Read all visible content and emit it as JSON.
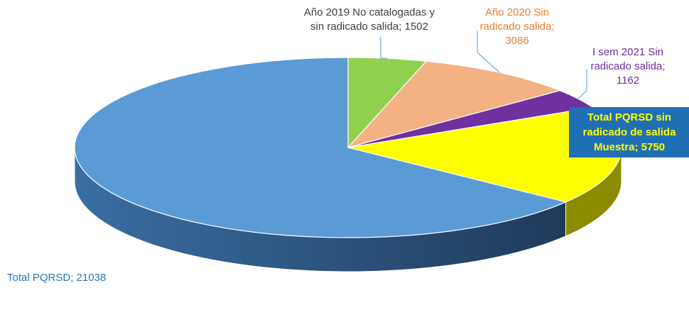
{
  "chart_data": {
    "type": "pie",
    "title": "",
    "legend": "none",
    "slices": [
      {
        "name_lines": [
          "Año 2019 No catalogadas y",
          "sin radicado salida;"
        ],
        "value_text": "1502",
        "value": 1502,
        "color": "#8fd14f",
        "label_color": "#404040"
      },
      {
        "name_lines": [
          "Año 2020 Sin",
          "radicado salida;"
        ],
        "value_text": "3086",
        "value": 3086,
        "color": "#f4b183",
        "label_color": "#ed7d31"
      },
      {
        "name_lines": [
          "I sem 2021 Sin",
          "radicado salida;"
        ],
        "value_text": "1162",
        "value": 1162,
        "color": "#7030a0",
        "label_color": "#7030a0"
      },
      {
        "name_lines": [
          "Total PQRSD sin",
          "radicado de salida",
          "Muestra;"
        ],
        "value_text": "5750",
        "value": 5750,
        "color": "#ffff00",
        "label_color": "#ffff00"
      },
      {
        "name_lines": [
          "Total PQRSD;"
        ],
        "value_text": "21038",
        "value": 21038,
        "color": "#5b9bd5",
        "label_color": "#2e75b6"
      }
    ]
  }
}
